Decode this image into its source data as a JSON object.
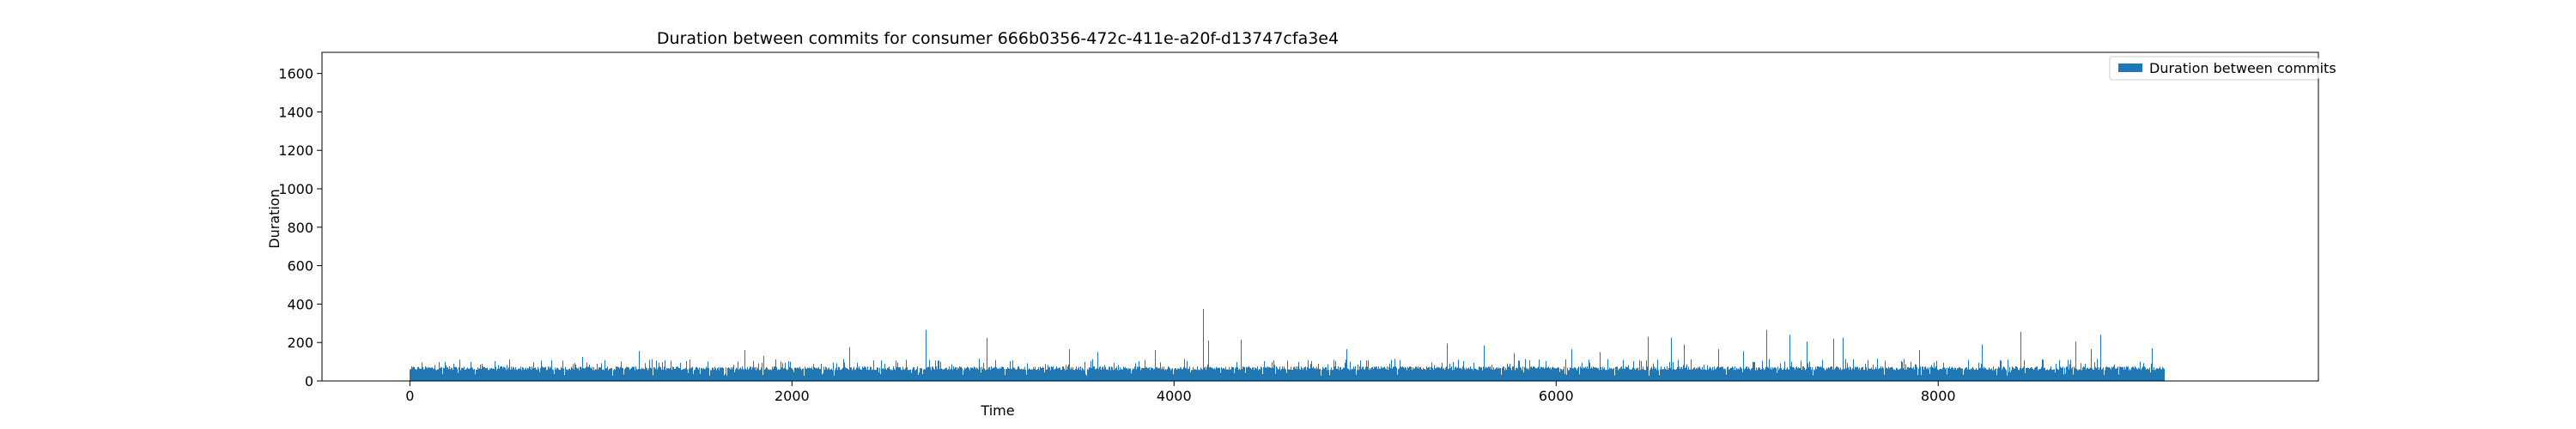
{
  "chart_data": {
    "type": "bar",
    "title": "Duration between commits for consumer 666b0356-472c-411e-a20f-d13747cfa3e4",
    "xlabel": "Time",
    "ylabel": "Duration",
    "xlim": [
      -460,
      9990
    ],
    "ylim": [
      0,
      1710
    ],
    "x_ticks": [
      0,
      2000,
      4000,
      6000,
      8000
    ],
    "y_ticks": [
      0,
      200,
      400,
      600,
      800,
      1000,
      1200,
      1400,
      1600
    ],
    "x_tick_labels": [
      "0",
      "2000",
      "4000",
      "6000",
      "8000"
    ],
    "y_tick_labels": [
      "0",
      "200",
      "400",
      "600",
      "800",
      "1000",
      "1200",
      "1400",
      "1600"
    ],
    "legend": {
      "position": "top-right",
      "label": "Duration between commits"
    },
    "grid": false,
    "color": "#1f77b4",
    "series": [
      {
        "name": "Duration between commits",
        "x_range": [
          0,
          9180
        ],
        "typical_value": 68,
        "spikes": [
          {
            "x": 0,
            "y": 60
          },
          {
            "x": 150,
            "y": 98
          },
          {
            "x": 900,
            "y": 125
          },
          {
            "x": 1200,
            "y": 155
          },
          {
            "x": 1750,
            "y": 160
          },
          {
            "x": 1850,
            "y": 130
          },
          {
            "x": 2300,
            "y": 175
          },
          {
            "x": 2700,
            "y": 265
          },
          {
            "x": 3020,
            "y": 225
          },
          {
            "x": 3450,
            "y": 165
          },
          {
            "x": 3600,
            "y": 150
          },
          {
            "x": 3900,
            "y": 160
          },
          {
            "x": 4150,
            "y": 375
          },
          {
            "x": 4180,
            "y": 210
          },
          {
            "x": 4350,
            "y": 215
          },
          {
            "x": 4900,
            "y": 165
          },
          {
            "x": 5430,
            "y": 195
          },
          {
            "x": 5620,
            "y": 185
          },
          {
            "x": 5780,
            "y": 145
          },
          {
            "x": 6080,
            "y": 165
          },
          {
            "x": 6230,
            "y": 150
          },
          {
            "x": 6480,
            "y": 230
          },
          {
            "x": 6600,
            "y": 225
          },
          {
            "x": 6670,
            "y": 190
          },
          {
            "x": 6850,
            "y": 165
          },
          {
            "x": 6980,
            "y": 155
          },
          {
            "x": 7100,
            "y": 265
          },
          {
            "x": 7220,
            "y": 240
          },
          {
            "x": 7310,
            "y": 205
          },
          {
            "x": 7450,
            "y": 220
          },
          {
            "x": 7500,
            "y": 225
          },
          {
            "x": 7900,
            "y": 160
          },
          {
            "x": 8230,
            "y": 190
          },
          {
            "x": 8430,
            "y": 255
          },
          {
            "x": 8720,
            "y": 205
          },
          {
            "x": 8800,
            "y": 165
          },
          {
            "x": 8850,
            "y": 240
          },
          {
            "x": 9120,
            "y": 170
          }
        ]
      }
    ]
  }
}
